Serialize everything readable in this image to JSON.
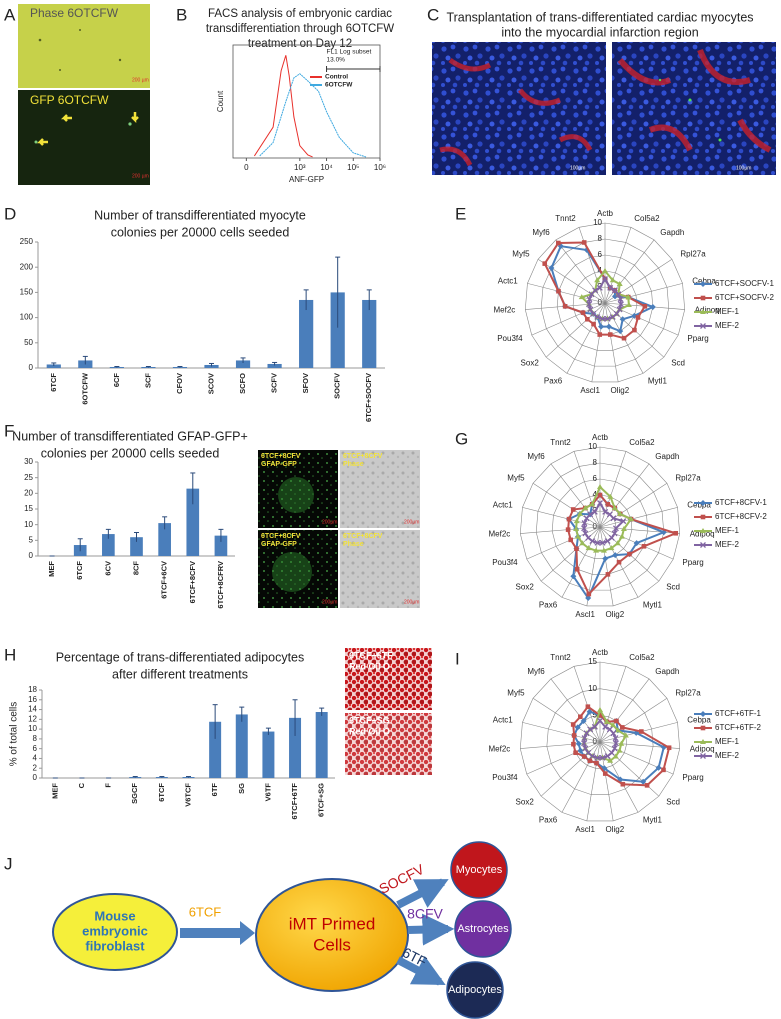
{
  "panel_labels": [
    "A",
    "B",
    "C",
    "D",
    "E",
    "F",
    "G",
    "H",
    "I",
    "J"
  ],
  "panel_A": {
    "images": [
      {
        "label": "Phase 6OTCFW",
        "scale": "200 µm"
      },
      {
        "label": "GFP 6OTCFW",
        "scale": "200 µm"
      }
    ]
  },
  "panel_C": {
    "title": [
      "Transplantation of trans-differentiated cardiac myocytes",
      "into the myocardial infarction region"
    ],
    "scale_bars": [
      "100µm",
      "100µm"
    ]
  },
  "panel_F_images": {
    "images": [
      {
        "lines": [
          "6TCF+8CFV",
          "GFAP-GFP"
        ],
        "scale": "200µm"
      },
      {
        "lines": [
          "6TCF+8CFV",
          "Phase"
        ],
        "scale": "200µm"
      },
      {
        "lines": [
          "6TCF+8CFV",
          "GFAP-GFP"
        ],
        "scale": "200µm"
      },
      {
        "lines": [
          "6TCF+8CFV",
          "Phase"
        ],
        "scale": "200µm"
      }
    ]
  },
  "panel_H_images": {
    "images": [
      {
        "lines": [
          "6TCF+6TF",
          "Red Oil O"
        ]
      },
      {
        "lines": [
          "6TCF+SG",
          "Red Oil O"
        ]
      }
    ]
  },
  "chart_data": [
    {
      "type": "line",
      "title": [
        "FACS analysis of embryonic cardiac",
        "transdifferentiation through 6OTCFW",
        "treatment on Day 12"
      ],
      "x_label": "ANF-GFP",
      "y_label": "Count",
      "xscale": "symlog",
      "linthresh": 100,
      "xlim": [
        -50,
        1000000
      ],
      "ylim": [
        0,
        110
      ],
      "xticks": [
        0,
        {
          "value": 1000,
          "label": "10³"
        },
        {
          "value": 10000,
          "label": "10⁴"
        },
        {
          "value": 100000,
          "label": "10⁵"
        },
        {
          "value": 1000000,
          "label": "10⁶"
        }
      ],
      "gate": [
        10000,
        1000000
      ],
      "annotations": [
        "FL1 Log subset",
        "13.0%"
      ],
      "series": [
        {
          "name": "Control",
          "color": "#e8302b",
          "x": [
            30,
            100,
            200,
            300,
            400,
            600,
            1000,
            2000,
            3000
          ],
          "values": [
            2,
            30,
            85,
            100,
            80,
            40,
            12,
            3,
            1
          ]
        },
        {
          "name": "6OTCFW",
          "color": "#3fa9e0",
          "x": [
            50,
            100,
            300,
            600,
            1000,
            2000,
            5000,
            10000,
            30000,
            100000,
            300000
          ],
          "values": [
            2,
            15,
            55,
            78,
            82,
            75,
            65,
            45,
            20,
            5,
            1
          ]
        }
      ]
    },
    {
      "type": "bar",
      "title": [
        "Number of transdifferentiated myocyte",
        "colonies per 20000 cells seeded"
      ],
      "categories": [
        "6TCF",
        "6OTCFW",
        "6CF",
        "SCF",
        "CFOV",
        "SCOV",
        "SCFO",
        "SCFV",
        "SFOV",
        "SOCFV",
        "6TCF+SOCFV"
      ],
      "values": [
        7,
        15,
        2,
        2,
        2,
        6,
        15,
        8,
        135,
        150,
        135
      ],
      "errors": [
        3,
        8,
        1,
        1,
        1,
        3,
        5,
        3,
        20,
        70,
        20
      ],
      "color": "#4a7ebb",
      "ylim": [
        0,
        250
      ],
      "yticks": [
        0,
        50,
        100,
        150,
        200,
        250
      ]
    },
    {
      "type": "radar",
      "rlim": [
        0,
        10
      ],
      "rticks": [
        0,
        2,
        4,
        6,
        8,
        10
      ],
      "categories": [
        "Actb",
        "Col5a2",
        "Gapdh",
        "Rpl27a",
        "Cebpa",
        "Adipoq",
        "Pparg",
        "Scd",
        "Mytl1",
        "Olig2",
        "Ascl1",
        "Pax6",
        "Sox2",
        "Pou3f4",
        "Mef2c",
        "Actc1",
        "Myf5",
        "Myf6",
        "Tnnt2"
      ],
      "series": [
        {
          "name": "6TCF+SOCFV-1",
          "color": "#4a7ebb",
          "values": [
            3,
            2,
            2,
            1.5,
            3,
            6,
            4,
            3,
            4,
            3,
            3,
            2,
            2,
            3,
            5,
            6,
            8,
            9,
            7
          ]
        },
        {
          "name": "6TCF+SOCFV-2",
          "color": "#c0504d",
          "values": [
            3,
            2,
            2,
            2,
            3,
            5,
            4.5,
            5,
            5,
            4,
            4,
            3,
            3,
            3,
            5,
            6,
            9,
            9.5,
            8
          ]
        },
        {
          "name": "MEF-1",
          "color": "#9bbb59",
          "values": [
            4,
            3,
            3,
            2,
            3,
            3,
            2,
            2,
            2,
            2,
            2,
            2,
            2,
            2,
            2,
            3,
            2,
            2,
            3
          ]
        },
        {
          "name": "MEF-2",
          "color": "#8064a2",
          "values": [
            3,
            2,
            2,
            2,
            2,
            2,
            2,
            2,
            2,
            2,
            2,
            2,
            2,
            2,
            2,
            2,
            2,
            2,
            2
          ]
        }
      ]
    },
    {
      "type": "bar",
      "title": [
        "Number of transdifferentiated GFAP-GFP+",
        "colonies per 20000 cells seeded"
      ],
      "categories": [
        "MEF",
        "6TCF",
        "6CV",
        "8CF",
        "6TCF+6CV",
        "6TCF+8CFV",
        "6TCF+8CFRV"
      ],
      "values": [
        0,
        3.5,
        7,
        6,
        10.5,
        21.5,
        6.5
      ],
      "errors": [
        0,
        2,
        1.5,
        1.5,
        2,
        5,
        2
      ],
      "color": "#4a7ebb",
      "ylim": [
        0,
        30
      ],
      "yticks": [
        0,
        5,
        10,
        15,
        20,
        25,
        30
      ]
    },
    {
      "type": "radar",
      "rlim": [
        0,
        10
      ],
      "rticks": [
        0,
        2,
        4,
        6,
        8,
        10
      ],
      "categories": [
        "Actb",
        "Col5a2",
        "Gapdh",
        "Rpl27a",
        "Cebpa",
        "Adipoq",
        "Pparg",
        "Scd",
        "Mytl1",
        "Olig2",
        "Ascl1",
        "Pax6",
        "Sox2",
        "Pou3f4",
        "Mef2c",
        "Actc1",
        "Myf5",
        "Myf6",
        "Tnnt2"
      ],
      "series": [
        {
          "name": "6TCF+8CFV-1",
          "color": "#4a7ebb",
          "values": [
            4,
            3,
            3,
            3,
            4,
            8,
            5,
            5,
            4,
            4,
            9,
            7,
            4,
            3,
            3,
            4,
            3,
            2,
            3
          ]
        },
        {
          "name": "6TCF+8CFV-2",
          "color": "#c0504d",
          "values": [
            4,
            3,
            3,
            3,
            4,
            9.5,
            6,
            5,
            5,
            6,
            8.5,
            6,
            4,
            4,
            4,
            4,
            4,
            3,
            3
          ]
        },
        {
          "name": "MEF-1",
          "color": "#9bbb59",
          "values": [
            5,
            4,
            3,
            3,
            4,
            3,
            3,
            3,
            3,
            3,
            3,
            3,
            3,
            3,
            3,
            3,
            3,
            3,
            3
          ]
        },
        {
          "name": "MEF-2",
          "color": "#8064a2",
          "values": [
            3,
            2,
            2,
            2,
            3,
            2,
            2,
            2,
            2,
            2,
            2,
            2,
            2,
            2,
            2,
            2,
            2,
            2,
            2
          ]
        }
      ]
    },
    {
      "type": "bar",
      "title": [
        "Percentage of  trans-differentiated adipocytes",
        "after different treatments"
      ],
      "y_label": "% of total cells",
      "categories": [
        "MEF",
        "C",
        "F",
        "SGCF",
        "6TCF",
        "V6TCF",
        "6TF",
        "SG",
        "V6TF",
        "6TCF+6TF",
        "6TCF+SG"
      ],
      "values": [
        0,
        0,
        0,
        0.2,
        0.2,
        0.2,
        11.5,
        13,
        9.5,
        12.3,
        13.5
      ],
      "errors": [
        0,
        0,
        0,
        0.1,
        0.1,
        0.1,
        3.5,
        1.5,
        0.7,
        3.7,
        0.8
      ],
      "color": "#4a7ebb",
      "ylim": [
        0,
        18
      ],
      "yticks": [
        0,
        2,
        4,
        6,
        8,
        10,
        12,
        14,
        16,
        18
      ]
    },
    {
      "type": "radar",
      "rlim": [
        0,
        15
      ],
      "rticks": [
        0,
        5,
        10,
        15
      ],
      "categories": [
        "Actb",
        "Col5a2",
        "Gapdh",
        "Rpl27a",
        "Cebpa",
        "Adipoq",
        "Pparg",
        "Scd",
        "Mytl1",
        "Olig2",
        "Ascl1",
        "Pax6",
        "Sox2",
        "Pou3f4",
        "Mef2c",
        "Actc1",
        "Myf5",
        "Myf6",
        "Tnnt2"
      ],
      "series": [
        {
          "name": "6TCF+6TF-1",
          "color": "#4a7ebb",
          "values": [
            5,
            4,
            5,
            4,
            7,
            12,
            12,
            11,
            8,
            5,
            4,
            4,
            4,
            4,
            4,
            5,
            5,
            5,
            6
          ]
        },
        {
          "name": "6TCF+6TF-2",
          "color": "#c0504d",
          "values": [
            5,
            4,
            5,
            5,
            8,
            13,
            13,
            12,
            9,
            6,
            4,
            4,
            4,
            5,
            5,
            5,
            6,
            6,
            7
          ]
        },
        {
          "name": "MEF-1",
          "color": "#9bbb59",
          "values": [
            6,
            4,
            4,
            4,
            5,
            4,
            4,
            4,
            4,
            3,
            3,
            3,
            3,
            3,
            3,
            3,
            3,
            3,
            3
          ]
        },
        {
          "name": "MEF-2",
          "color": "#8064a2",
          "values": [
            4,
            3,
            3,
            3,
            3,
            3,
            3,
            3,
            3,
            3,
            3,
            3,
            3,
            3,
            3,
            3,
            3,
            3,
            3
          ]
        }
      ]
    }
  ],
  "diagram": {
    "nodes": [
      {
        "label": [
          "Mouse",
          "embryonic",
          "fibroblast"
        ]
      },
      {
        "label": [
          "iMT Primed",
          "Cells"
        ]
      },
      {
        "label": [
          "Myocytes"
        ]
      },
      {
        "label": [
          "Astrocytes"
        ]
      },
      {
        "label": [
          "Adipocytes"
        ]
      }
    ],
    "edges": [
      {
        "label": "6TCF"
      },
      {
        "label": "SOCFV"
      },
      {
        "label": "8CFV"
      },
      {
        "label": "6TF"
      }
    ]
  }
}
